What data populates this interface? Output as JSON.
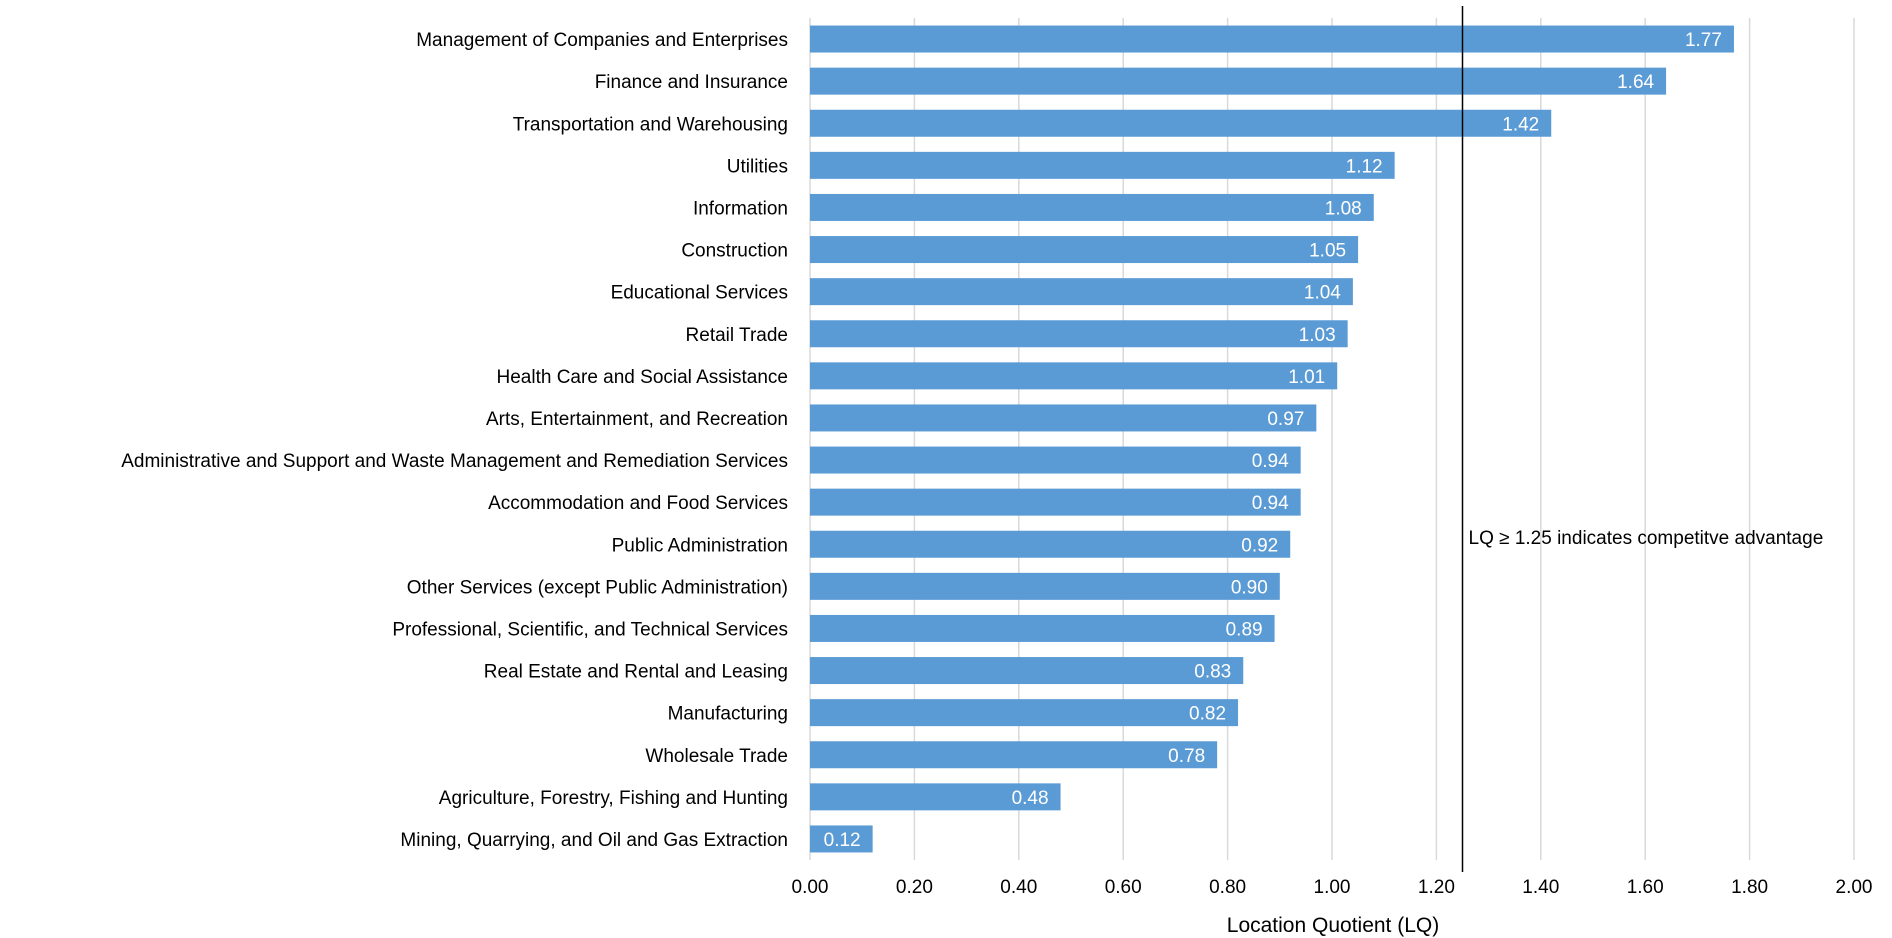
{
  "chart_data": {
    "type": "bar",
    "orientation": "horizontal",
    "categories": [
      "Management of Companies and Enterprises",
      "Finance and Insurance",
      "Transportation and Warehousing",
      "Utilities",
      "Information",
      "Construction",
      "Educational Services",
      "Retail Trade",
      "Health Care and Social Assistance",
      "Arts, Entertainment, and Recreation",
      "Administrative and Support and Waste Management and Remediation Services",
      "Accommodation and Food Services",
      "Public Administration",
      "Other Services (except Public Administration)",
      "Professional, Scientific, and Technical Services",
      "Real Estate and Rental and Leasing",
      "Manufacturing",
      "Wholesale Trade",
      "Agriculture, Forestry, Fishing and Hunting",
      "Mining, Quarrying, and Oil and Gas Extraction"
    ],
    "values": [
      1.77,
      1.64,
      1.42,
      1.12,
      1.08,
      1.05,
      1.04,
      1.03,
      1.01,
      0.97,
      0.94,
      0.94,
      0.92,
      0.9,
      0.89,
      0.83,
      0.82,
      0.78,
      0.48,
      0.12
    ],
    "data_labels": [
      "1.77",
      "1.64",
      "1.42",
      "1.12",
      "1.08",
      "1.05",
      "1.04",
      "1.03",
      "1.01",
      "0.97",
      "0.94",
      "0.94",
      "0.92",
      "0.90",
      "0.89",
      "0.83",
      "0.82",
      "0.78",
      "0.48",
      "0.12"
    ],
    "title": "",
    "xlabel": "Location Quotient (LQ)",
    "ylabel": "",
    "xlim": [
      0,
      2.0
    ],
    "x_ticks": [
      "0.00",
      "0.20",
      "0.40",
      "0.60",
      "0.80",
      "1.00",
      "1.20",
      "1.40",
      "1.60",
      "1.80",
      "2.00"
    ],
    "grid": "vertical",
    "legend": "none",
    "bar_color": "#5b9bd5",
    "reference_line": {
      "value": 1.25,
      "label": "LQ ≥ 1.25 indicates competitve advantage"
    }
  }
}
